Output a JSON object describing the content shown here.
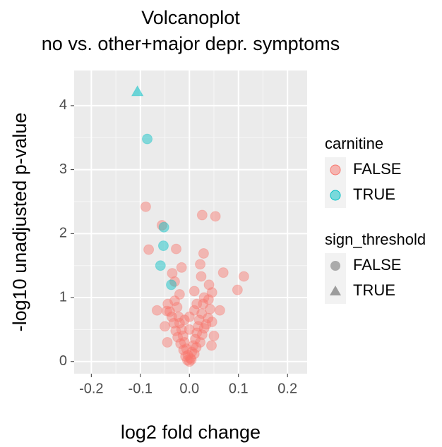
{
  "chart_data": {
    "type": "scatter",
    "title": "Volcanoplot",
    "subtitle": "no vs. other+major depr. symptoms",
    "x_label": "log2 fold change",
    "y_label": "-log10 unadjusted p-value",
    "xlim": [
      -0.235,
      0.24
    ],
    "ylim": [
      -0.19,
      4.55
    ],
    "xticks": [
      -0.2,
      -0.1,
      {
        "value": 0,
        "label": "0.0"
      },
      0.1,
      0.2
    ],
    "yticks": [
      0,
      1,
      2,
      3,
      4
    ],
    "grid": true,
    "legends": [
      {
        "title": "carnitine",
        "entries": [
          {
            "label": "FALSE",
            "color": "#F8766D"
          },
          {
            "label": "TRUE",
            "color": "#00BFC4"
          }
        ]
      },
      {
        "title": "sign_threshold",
        "entries": [
          {
            "label": "FALSE",
            "shape": "circle"
          },
          {
            "label": "TRUE",
            "shape": "triangle"
          }
        ]
      }
    ],
    "series": [
      {
        "color": "#F8766D",
        "shape": "circle",
        "x": [
          -0.089,
          0.026,
          0.053,
          -0.083,
          -0.056,
          -0.027,
          0.029,
          0.111,
          0.069,
          0.098,
          0.022,
          0.04,
          -0.016,
          -0.066,
          -0.046,
          0.062,
          0.046,
          -0.035,
          0.024,
          0.039,
          0,
          0.002,
          -0.003,
          0.005,
          -0.006,
          0.008,
          -0.01,
          0.012,
          -0.013,
          0.015,
          -0.016,
          0.018,
          -0.02,
          0.02,
          -0.022,
          0.025,
          -0.025,
          0.028,
          -0.03,
          0.03,
          -0.004,
          0.004,
          -0.008,
          0.01,
          -0.012,
          0.014,
          -0.018,
          0.022,
          -0.024,
          0.026,
          -0.028,
          0.03,
          -0.032,
          0.034,
          -0.036,
          0.038,
          -0.04,
          0.042,
          -0.044,
          0.046,
          -0.02,
          0.01,
          -0.03,
          0.015,
          -0.05,
          0.05,
          -0.045,
          0.045,
          0,
          0,
          -0.01,
          0.01
        ],
        "values": [
          2.42,
          2.29,
          2.27,
          1.75,
          2.13,
          1.76,
          1.69,
          1.33,
          1.39,
          1.12,
          1.52,
          1.2,
          1.47,
          0.8,
          0.79,
          0.8,
          1.08,
          1.38,
          1.33,
          0.97,
          0,
          0.05,
          0.1,
          0.15,
          0.2,
          0.25,
          0.3,
          0.35,
          0.4,
          0.45,
          0.5,
          0.55,
          0.6,
          0.65,
          0.7,
          0.75,
          0.85,
          0.9,
          0.95,
          1.0,
          0.02,
          0.03,
          0.08,
          0.12,
          0.18,
          0.22,
          0.28,
          0.3,
          0.38,
          0.42,
          0.48,
          0.52,
          0.6,
          0.58,
          0.7,
          0.68,
          0.78,
          0.82,
          0.9,
          0.62,
          1.05,
          1.1,
          1.25,
          0.9,
          0.55,
          0.4,
          0.3,
          0.25,
          0.5,
          0.7,
          0.65,
          0.8
        ]
      },
      {
        "color": "#00BFC4",
        "shape": "circle",
        "x": [
          -0.086,
          -0.052,
          -0.053,
          -0.059,
          -0.037
        ],
        "values": [
          3.48,
          2.1,
          1.81,
          1.5,
          1.2
        ]
      },
      {
        "color": "#00BFC4",
        "shape": "triangle",
        "x": [
          -0.106
        ],
        "values": [
          4.22
        ]
      }
    ]
  }
}
